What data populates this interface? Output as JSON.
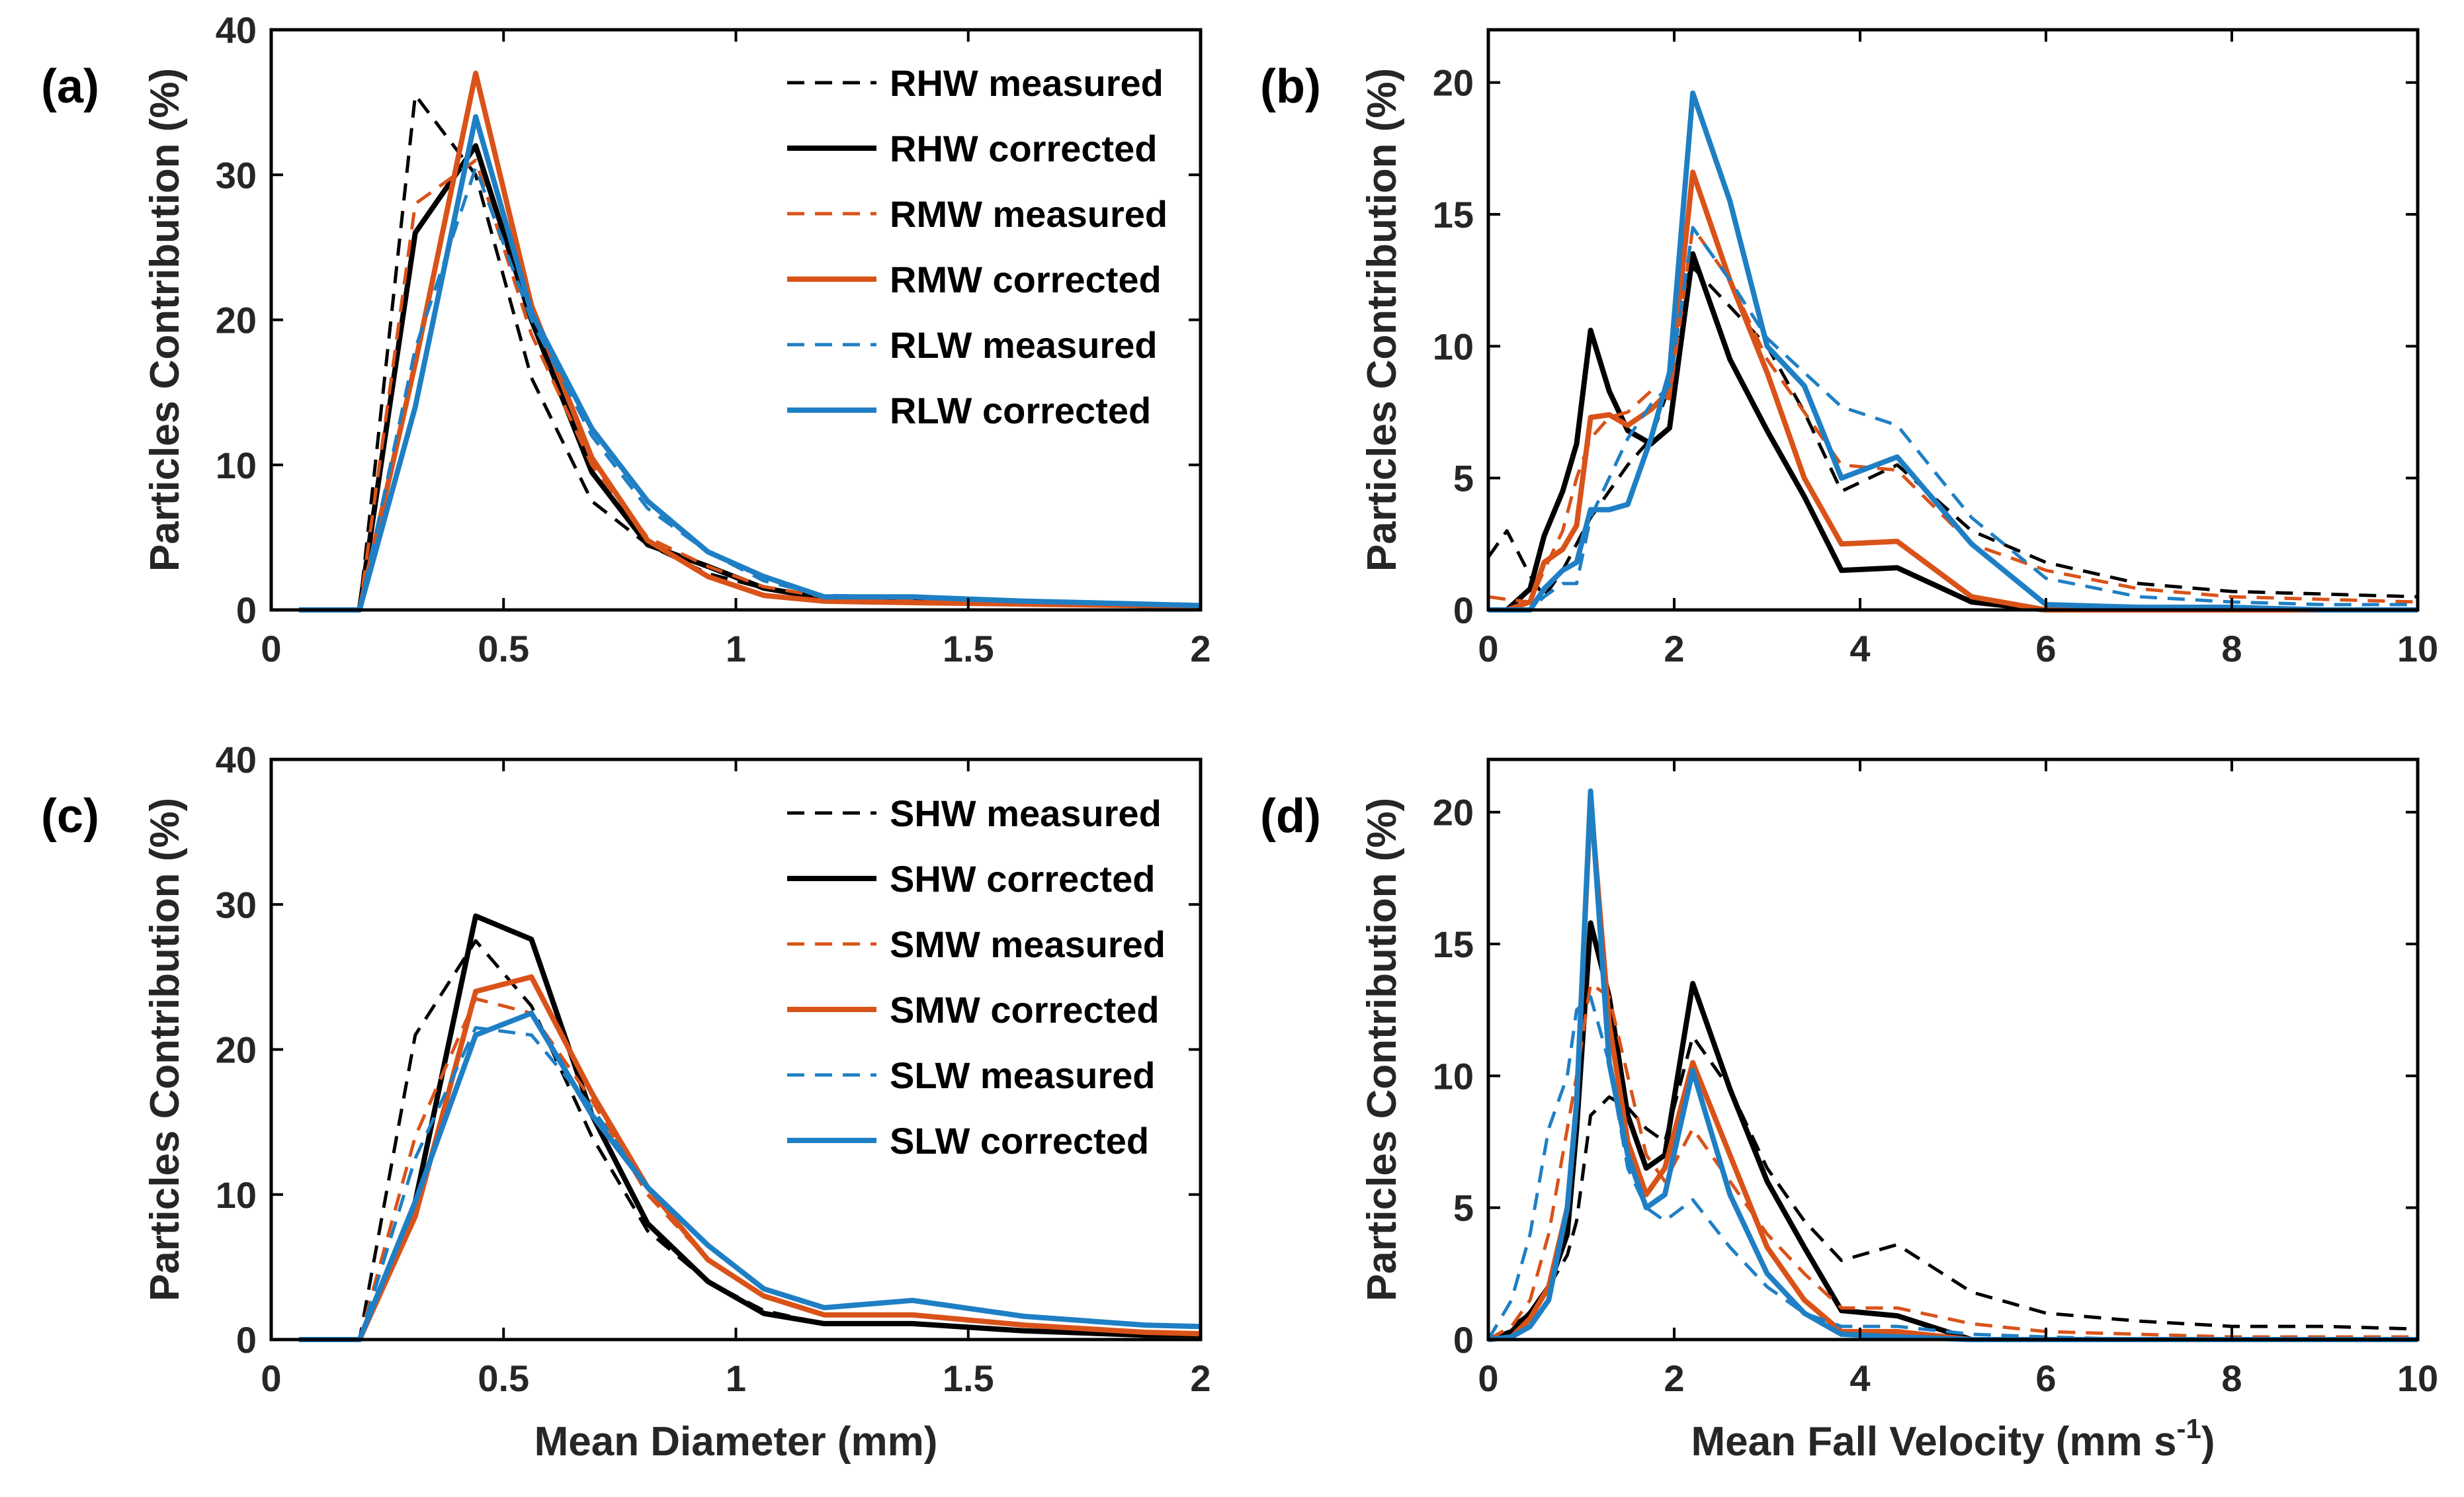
{
  "colors": {
    "black": "#000000",
    "orange": "#D95319",
    "blue": "#1F7FC4"
  },
  "chart_data": [
    {
      "panel": "(a)",
      "type": "line",
      "ylabel": "Particles Contribution (%)",
      "xlabel": "",
      "xlim": [
        0,
        2
      ],
      "ylim": [
        0,
        40
      ],
      "xticks": [
        0,
        0.5,
        1,
        1.5,
        2
      ],
      "yticks": [
        0,
        10,
        20,
        30,
        40
      ],
      "xtick_labels": [
        "0",
        "0.5",
        "1",
        "1.5",
        "2"
      ],
      "ytick_labels": [
        "0",
        "10",
        "20",
        "30",
        "40"
      ],
      "legend_position": "top-right",
      "x": [
        0.06,
        0.19,
        0.31,
        0.44,
        0.56,
        0.69,
        0.81,
        0.94,
        1.06,
        1.19,
        1.38,
        1.62,
        1.88,
        2.0
      ],
      "series": [
        {
          "name": "RHW measured",
          "color": "#000000",
          "dash": true,
          "values": [
            0,
            0,
            35.5,
            30,
            16,
            7.5,
            4.5,
            2.5,
            1.5,
            0.8,
            0.6,
            0.4,
            0.3,
            0.2
          ]
        },
        {
          "name": "RHW corrected",
          "color": "#000000",
          "dash": false,
          "values": [
            0,
            0,
            26,
            32,
            20,
            9.5,
            4.5,
            3,
            1.5,
            0.8,
            0.7,
            0.5,
            0.3,
            0.2
          ]
        },
        {
          "name": "RMW measured",
          "color": "#D95319",
          "dash": true,
          "values": [
            0,
            0,
            28,
            31,
            19,
            10,
            5,
            3,
            1.6,
            0.9,
            0.7,
            0.5,
            0.3,
            0.2
          ]
        },
        {
          "name": "RMW corrected",
          "color": "#D95319",
          "dash": false,
          "values": [
            0,
            0,
            17,
            37,
            21,
            10.5,
            4.8,
            2.3,
            1,
            0.6,
            0.5,
            0.4,
            0.3,
            0.2
          ]
        },
        {
          "name": "RLW measured",
          "color": "#1F7FC4",
          "dash": true,
          "values": [
            0,
            0,
            18,
            30.5,
            20,
            12,
            7,
            4,
            2,
            1,
            0.9,
            0.6,
            0.4,
            0.3
          ]
        },
        {
          "name": "RLW corrected",
          "color": "#1F7FC4",
          "dash": false,
          "values": [
            0,
            0,
            14,
            34,
            20.5,
            12.5,
            7.5,
            4,
            2.3,
            0.9,
            0.9,
            0.6,
            0.4,
            0.3
          ]
        }
      ]
    },
    {
      "panel": "(b)",
      "type": "line",
      "ylabel": "Particles Contribution (%)",
      "xlabel": "",
      "xlim": [
        0,
        10
      ],
      "ylim": [
        0,
        22
      ],
      "xticks": [
        0,
        2,
        4,
        6,
        8,
        10
      ],
      "yticks": [
        0,
        5,
        10,
        15,
        20
      ],
      "xtick_labels": [
        "0",
        "2",
        "4",
        "6",
        "8",
        "10"
      ],
      "ytick_labels": [
        "0",
        "5",
        "10",
        "15",
        "20"
      ],
      "x": [
        0,
        0.2,
        0.45,
        0.6,
        0.8,
        0.95,
        1.1,
        1.3,
        1.5,
        1.75,
        1.95,
        2.2,
        2.6,
        3.0,
        3.4,
        3.8,
        4.4,
        5.2,
        6.0,
        7.0,
        8.0,
        9.0,
        10.0
      ],
      "series": [
        {
          "name": "RHW measured",
          "color": "#000000",
          "dash": true,
          "values": [
            2,
            3,
            1.3,
            0.5,
            1.5,
            2.5,
            3.5,
            4.5,
            5.5,
            6.5,
            8.5,
            13,
            11.5,
            10,
            7.5,
            4.5,
            5.5,
            3,
            1.8,
            1,
            0.7,
            0.6,
            0.5
          ]
        },
        {
          "name": "RHW corrected",
          "color": "#000000",
          "dash": false,
          "values": [
            0,
            0,
            0.8,
            2.8,
            4.5,
            6.3,
            10.6,
            8.3,
            6.8,
            6.3,
            6.9,
            13.5,
            9.5,
            6.8,
            4.3,
            1.5,
            1.6,
            0.3,
            0,
            0,
            0,
            0,
            0
          ]
        },
        {
          "name": "RMW measured",
          "color": "#D95319",
          "dash": true,
          "values": [
            0.5,
            0.4,
            0.3,
            1.5,
            3,
            5,
            6.5,
            7.3,
            7.5,
            8.3,
            8,
            14.5,
            12.5,
            9.5,
            7.5,
            5.5,
            5.3,
            2.5,
            1.5,
            0.8,
            0.5,
            0.4,
            0.3
          ]
        },
        {
          "name": "RMW corrected",
          "color": "#D95319",
          "dash": false,
          "values": [
            0,
            0,
            0.3,
            1.8,
            2.3,
            3.2,
            7.3,
            7.4,
            7,
            7.6,
            8.3,
            16.6,
            12.5,
            9,
            5,
            2.5,
            2.6,
            0.5,
            0,
            0,
            0,
            0,
            0
          ]
        },
        {
          "name": "RLW measured",
          "color": "#1F7FC4",
          "dash": true,
          "values": [
            0,
            0,
            0,
            0.5,
            1,
            1,
            3.5,
            5,
            6.5,
            7.8,
            8.5,
            14.5,
            12.5,
            10.3,
            9,
            7.7,
            7,
            3.5,
            1.2,
            0.5,
            0.3,
            0.2,
            0.2
          ]
        },
        {
          "name": "RLW corrected",
          "color": "#1F7FC4",
          "dash": false,
          "values": [
            0,
            0,
            0,
            0.8,
            1.5,
            1.8,
            3.8,
            3.8,
            4,
            6.5,
            9,
            19.6,
            15.5,
            10,
            8.5,
            5,
            5.8,
            2.5,
            0.2,
            0.1,
            0.1,
            0,
            0
          ]
        }
      ]
    },
    {
      "panel": "(c)",
      "type": "line",
      "ylabel": "Particles Contribution (%)",
      "xlabel": "Mean Diameter (mm)",
      "xlim": [
        0,
        2
      ],
      "ylim": [
        0,
        40
      ],
      "xticks": [
        0,
        0.5,
        1,
        1.5,
        2
      ],
      "yticks": [
        0,
        10,
        20,
        30,
        40
      ],
      "xtick_labels": [
        "0",
        "0.5",
        "1",
        "1.5",
        "2"
      ],
      "ytick_labels": [
        "0",
        "10",
        "20",
        "30",
        "40"
      ],
      "legend_position": "top-right",
      "x": [
        0.06,
        0.19,
        0.31,
        0.44,
        0.56,
        0.69,
        0.81,
        0.94,
        1.06,
        1.19,
        1.38,
        1.62,
        1.88,
        2.0
      ],
      "series": [
        {
          "name": "SHW measured",
          "color": "#000000",
          "dash": true,
          "values": [
            0,
            0,
            21,
            27.5,
            23,
            14,
            7.5,
            4,
            2,
            1.1,
            1.1,
            0.6,
            0.3,
            0.3
          ]
        },
        {
          "name": "SHW corrected",
          "color": "#000000",
          "dash": false,
          "values": [
            0,
            0,
            9.5,
            29.2,
            27.6,
            15.5,
            8,
            4,
            1.8,
            1.1,
            1.1,
            0.6,
            0.3,
            0.3
          ]
        },
        {
          "name": "SMW measured",
          "color": "#D95319",
          "dash": true,
          "values": [
            0,
            0,
            14,
            23.5,
            22.5,
            16.5,
            10,
            5.5,
            3,
            1.7,
            1.7,
            1,
            0.5,
            0.4
          ]
        },
        {
          "name": "SMW corrected",
          "color": "#D95319",
          "dash": false,
          "values": [
            0,
            0,
            8.5,
            24,
            25,
            17,
            10.5,
            5.5,
            3,
            1.7,
            1.7,
            1,
            0.5,
            0.4
          ]
        },
        {
          "name": "SLW measured",
          "color": "#1F7FC4",
          "dash": true,
          "values": [
            0,
            0,
            12.5,
            21.5,
            21,
            16,
            10.5,
            6.5,
            3.5,
            2.2,
            2.7,
            1.6,
            1,
            0.9
          ]
        },
        {
          "name": "SLW corrected",
          "color": "#1F7FC4",
          "dash": false,
          "values": [
            0,
            0,
            9.5,
            21,
            22.5,
            15.5,
            10.5,
            6.5,
            3.5,
            2.2,
            2.7,
            1.6,
            1,
            0.9
          ]
        }
      ]
    },
    {
      "panel": "(d)",
      "type": "line",
      "ylabel": "Particles Contribution (%)",
      "xlabel": "Mean Fall Velocity (mm s",
      "xlabel_sup": "-1",
      "xlabel_tail": ")",
      "xlim": [
        0,
        10
      ],
      "ylim": [
        0,
        22
      ],
      "xticks": [
        0,
        2,
        4,
        6,
        8,
        10
      ],
      "yticks": [
        0,
        5,
        10,
        15,
        20
      ],
      "xtick_labels": [
        "0",
        "2",
        "4",
        "6",
        "8",
        "10"
      ],
      "ytick_labels": [
        "0",
        "5",
        "10",
        "15",
        "20"
      ],
      "x": [
        0,
        0.25,
        0.45,
        0.65,
        0.85,
        0.95,
        1.1,
        1.3,
        1.5,
        1.7,
        1.9,
        2.2,
        2.6,
        3.0,
        3.4,
        3.8,
        4.4,
        5.2,
        6.0,
        7.0,
        8.0,
        9.0,
        10.0
      ],
      "series": [
        {
          "name": "SHW measured",
          "color": "#000000",
          "dash": true,
          "values": [
            0,
            0.5,
            1,
            2,
            3.2,
            4.5,
            8.5,
            9.2,
            8.8,
            8,
            7.5,
            11.5,
            9.5,
            6.5,
            4.5,
            3,
            3.6,
            1.8,
            1,
            0.7,
            0.5,
            0.5,
            0.4
          ]
        },
        {
          "name": "SHW corrected",
          "color": "#000000",
          "dash": false,
          "values": [
            0,
            0.3,
            1,
            2,
            4,
            8,
            15.8,
            13,
            8.5,
            6.5,
            7,
            13.5,
            9.5,
            6,
            3.5,
            1.1,
            0.9,
            0,
            0,
            0,
            0,
            0,
            0
          ]
        },
        {
          "name": "SMW measured",
          "color": "#D95319",
          "dash": true,
          "values": [
            0,
            0.5,
            1.5,
            4,
            8,
            10,
            13.5,
            13,
            10,
            7,
            6,
            8,
            6,
            4,
            2.5,
            1.2,
            1.2,
            0.6,
            0.3,
            0.2,
            0.1,
            0.1,
            0.1
          ]
        },
        {
          "name": "SMW corrected",
          "color": "#D95319",
          "dash": false,
          "values": [
            0,
            0.1,
            0.8,
            2,
            5,
            9,
            20.5,
            12,
            7.5,
            5.5,
            6.5,
            10.5,
            7,
            3.5,
            1.5,
            0.3,
            0.3,
            0,
            0,
            0,
            0,
            0,
            0
          ]
        },
        {
          "name": "SLW measured",
          "color": "#1F7FC4",
          "dash": true,
          "values": [
            0,
            1.5,
            4,
            8,
            10,
            12.5,
            13,
            10.5,
            6.5,
            5,
            4.5,
            5.3,
            3.5,
            2,
            1,
            0.5,
            0.5,
            0.2,
            0.1,
            0,
            0,
            0,
            0
          ]
        },
        {
          "name": "SLW corrected",
          "color": "#1F7FC4",
          "dash": false,
          "values": [
            0,
            0.1,
            0.5,
            1.5,
            5,
            9,
            20.8,
            10.5,
            7,
            5,
            5.5,
            10.2,
            5.5,
            2.5,
            1,
            0.2,
            0.1,
            0,
            0,
            0,
            0,
            0,
            0
          ]
        }
      ]
    }
  ]
}
